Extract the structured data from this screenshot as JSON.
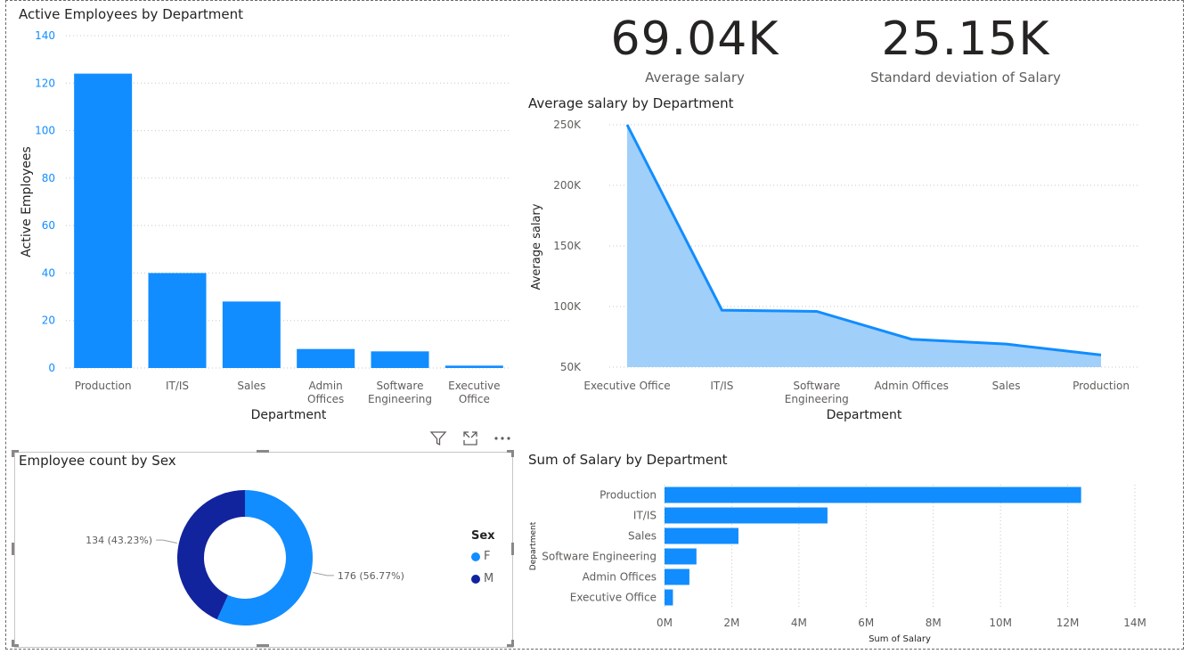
{
  "cards": [
    {
      "value": "69.04K",
      "label": "Average salary"
    },
    {
      "value": "25.15K",
      "label": "Standard deviation of Salary"
    }
  ],
  "header_icons": [
    "filter-icon",
    "focus-mode-icon",
    "more-options-icon"
  ],
  "colors": {
    "primary": "#118DFF",
    "area_fill": "#A0CFFA",
    "male": "#12239E",
    "grid": "#c8c6c4",
    "axis_text": "#605e5c"
  },
  "chart_data": [
    {
      "id": "active",
      "type": "bar",
      "title": "Active Employees by Department",
      "xlabel": "Department",
      "ylabel": "Active Employees",
      "categories": [
        [
          "Production"
        ],
        [
          "IT/IS"
        ],
        [
          "Sales"
        ],
        [
          "Admin",
          "Offices"
        ],
        [
          "Software",
          "Engineering"
        ],
        [
          "Executive",
          "Office"
        ]
      ],
      "values": [
        124,
        40,
        28,
        8,
        7,
        1
      ],
      "ylim": [
        0,
        140
      ],
      "yticks": [
        "0",
        "20",
        "40",
        "60",
        "80",
        "100",
        "120",
        "140"
      ],
      "grid": true
    },
    {
      "id": "avgsal",
      "type": "area",
      "title": "Average salary by Department",
      "xlabel": "Department",
      "ylabel": "Average salary",
      "categories": [
        [
          "Executive Office"
        ],
        [
          "IT/IS"
        ],
        [
          "Software",
          "Engineering"
        ],
        [
          "Admin Offices"
        ],
        [
          "Sales"
        ],
        [
          "Production"
        ]
      ],
      "values": [
        250000,
        97000,
        96000,
        73000,
        69000,
        60000
      ],
      "ylim": [
        50000,
        250000
      ],
      "yticks": [
        "50K",
        "100K",
        "150K",
        "200K",
        "250K"
      ],
      "grid": true
    },
    {
      "id": "sex",
      "type": "pie",
      "title": "Employee count by Sex",
      "legend_title": "Sex",
      "legend_position": "right",
      "slices": [
        {
          "label": "F",
          "value": 176,
          "text": "176 (56.77%)",
          "color": "#118DFF"
        },
        {
          "label": "M",
          "value": 134,
          "text": "134 (43.23%)",
          "color": "#12239E"
        }
      ]
    },
    {
      "id": "sumsal",
      "type": "bar",
      "orientation": "horizontal",
      "title": "Sum of Salary by Department",
      "xlabel": "Sum of Salary",
      "ylabel": "Department",
      "categories": [
        "Production",
        "IT/IS",
        "Sales",
        "Software Engineering",
        "Admin Offices",
        "Executive Office"
      ],
      "values": [
        12400000,
        4850000,
        2200000,
        950000,
        740000,
        250000
      ],
      "xlim": [
        0,
        14000000
      ],
      "xticks": [
        "0M",
        "2M",
        "4M",
        "6M",
        "8M",
        "10M",
        "12M",
        "14M"
      ],
      "grid": true
    }
  ]
}
